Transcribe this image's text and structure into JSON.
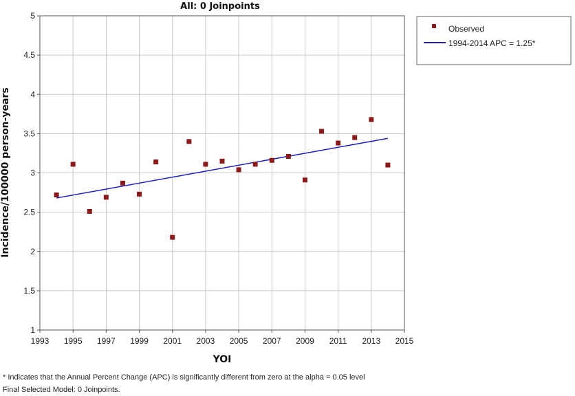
{
  "chart_data": {
    "type": "scatter",
    "title": "All: 0 Joinpoints",
    "xlabel": "YOI",
    "ylabel": "Incidence/100000 person-years",
    "xlim": [
      1993,
      2015
    ],
    "ylim": [
      1,
      5
    ],
    "xticks": [
      1993,
      1995,
      1997,
      1999,
      2001,
      2003,
      2005,
      2007,
      2009,
      2011,
      2013,
      2015
    ],
    "yticks": [
      1,
      1.5,
      2,
      2.5,
      3,
      3.5,
      4,
      4.5,
      5
    ],
    "grid": true,
    "legend_position": "top-right",
    "series": [
      {
        "name": "Observed",
        "kind": "scatter",
        "color": "#8B1A1A",
        "x": [
          1994,
          1995,
          1996,
          1997,
          1998,
          1999,
          2000,
          2001,
          2002,
          2003,
          2004,
          2005,
          2006,
          2007,
          2008,
          2009,
          2010,
          2011,
          2012,
          2013,
          2014
        ],
        "y": [
          2.72,
          3.11,
          2.51,
          2.69,
          2.87,
          2.73,
          3.14,
          2.18,
          3.4,
          3.11,
          3.15,
          3.04,
          3.11,
          3.16,
          3.21,
          2.91,
          3.53,
          3.38,
          3.45,
          3.68,
          3.1
        ]
      },
      {
        "name": "1994-2014 APC  = 1.25*",
        "kind": "line",
        "color": "#1F1FBF",
        "x": [
          1994,
          2014
        ],
        "y": [
          2.68,
          3.44
        ]
      }
    ]
  },
  "footnote": "* Indicates that the Annual Percent Change (APC) is significantly different from zero at the alpha = 0.05 level",
  "final_model": "Final Selected Model: 0 Joinpoints."
}
